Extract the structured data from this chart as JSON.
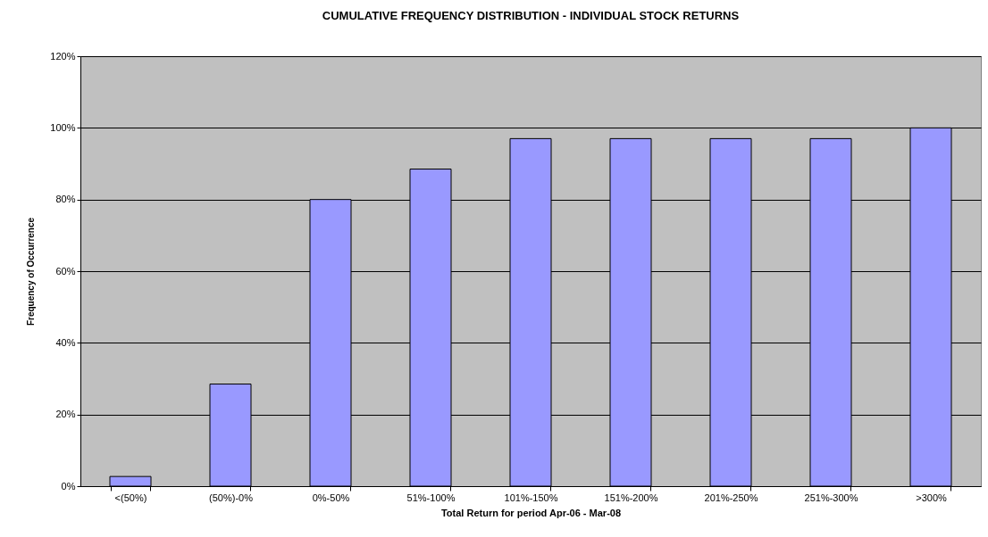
{
  "chart_data": {
    "type": "bar",
    "title": "CUMULATIVE FREQUENCY DISTRIBUTION - INDIVIDUAL STOCK RETURNS",
    "xlabel": "Total Return for period Apr-06 - Mar-08",
    "ylabel": "Frequency of Occurrence",
    "categories": [
      "<(50%)",
      "(50%)-0%",
      "0%-50%",
      "51%-100%",
      "101%-150%",
      "151%-200%",
      "201%-250%",
      "251%-300%",
      ">300%"
    ],
    "values": [
      0.027,
      0.285,
      0.8,
      0.885,
      0.97,
      0.97,
      0.97,
      0.97,
      1.0
    ],
    "color": "#9999ff",
    "ylim": [
      0,
      1.2
    ],
    "yticks": [
      {
        "value": 0,
        "label": "0%"
      },
      {
        "value": 0.2,
        "label": "20%"
      },
      {
        "value": 0.4,
        "label": "40%"
      },
      {
        "value": 0.6,
        "label": "60%"
      },
      {
        "value": 0.8,
        "label": "80%"
      },
      {
        "value": 1.0,
        "label": "100%"
      },
      {
        "value": 1.2,
        "label": "120%"
      }
    ],
    "grid": "y"
  }
}
